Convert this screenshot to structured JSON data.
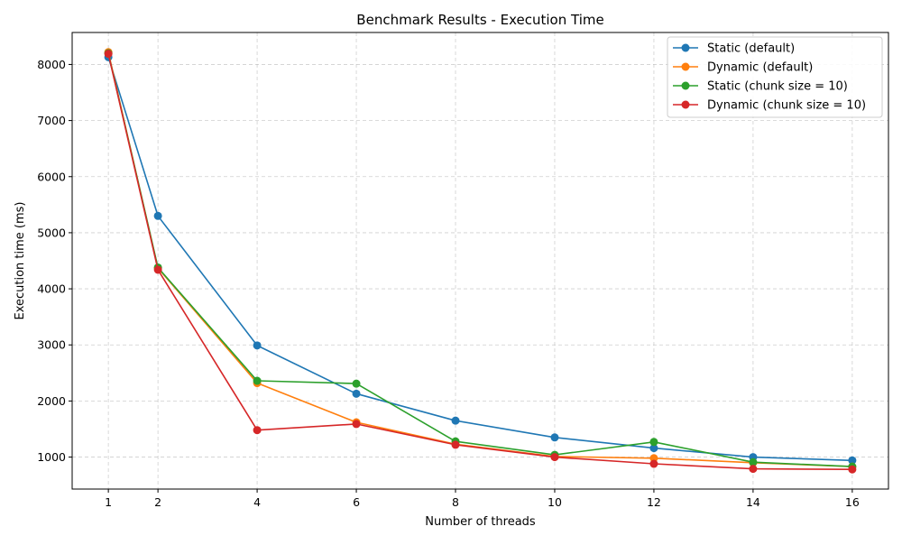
{
  "chart_data": {
    "type": "line",
    "title": "Benchmark Results - Execution Time",
    "xlabel": "Number of threads",
    "ylabel": "Execution time (ms)",
    "x": [
      1,
      2,
      4,
      6,
      8,
      10,
      12,
      14,
      16
    ],
    "xticks": [
      "1",
      "2",
      "4",
      "6",
      "8",
      "10",
      "12",
      "14",
      "16"
    ],
    "yticks": [
      "1000",
      "2000",
      "3000",
      "4000",
      "5000",
      "6000",
      "7000",
      "8000"
    ],
    "xlim": [
      0.27,
      16.73
    ],
    "ylim": [
      430,
      8570
    ],
    "grid": true,
    "legend_position": "top-right",
    "series": [
      {
        "name": "Static (default)",
        "color": "#1f77b4",
        "values": [
          8130,
          5300,
          2990,
          2130,
          1650,
          1350,
          1160,
          1000,
          940
        ]
      },
      {
        "name": "Dynamic (default)",
        "color": "#ff7f0e",
        "values": [
          8220,
          4370,
          2320,
          1620,
          1230,
          1010,
          980,
          900,
          830
        ]
      },
      {
        "name": "Static (chunk size = 10)",
        "color": "#2ca02c",
        "values": [
          8200,
          4380,
          2360,
          2310,
          1280,
          1040,
          1270,
          910,
          830
        ]
      },
      {
        "name": "Dynamic (chunk size = 10)",
        "color": "#d62728",
        "values": [
          8190,
          4340,
          1480,
          1590,
          1220,
          1000,
          880,
          790,
          780
        ]
      }
    ]
  }
}
